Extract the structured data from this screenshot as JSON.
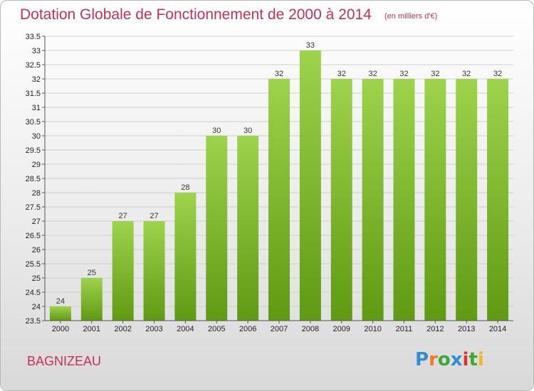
{
  "title": "Dotation Globale de Fonctionnement de 2000 à 2014",
  "unit_note": "(en milliers d'€)",
  "commune": "BAGNIZEAU",
  "logo": {
    "text": "Proxiti",
    "colors": [
      "#2f8fd0",
      "#f07c1e",
      "#3aa935",
      "#2f8fd0",
      "#e8302b",
      "#3aa935",
      "#f2b71c"
    ]
  },
  "colors": {
    "title": "#c4305a",
    "bar_top": "#9ed34c",
    "bar_bottom": "#5f9a12",
    "grid": "#cfcfcf"
  },
  "chart_data": {
    "type": "bar",
    "categories": [
      "2000",
      "2001",
      "2002",
      "2003",
      "2004",
      "2005",
      "2006",
      "2007",
      "2008",
      "2009",
      "2010",
      "2011",
      "2012",
      "2013",
      "2014"
    ],
    "values": [
      24,
      25,
      27,
      27,
      28,
      30,
      30,
      32,
      33,
      32,
      32,
      32,
      32,
      32,
      32
    ],
    "value_labels": [
      "24",
      "25",
      "27",
      "27",
      "28",
      "30",
      "30",
      "32",
      "33",
      "32",
      "32",
      "32",
      "32",
      "32",
      "32"
    ],
    "ylim": [
      23.5,
      33.5
    ],
    "yticks": [
      "23.5",
      "24",
      "24.5",
      "25",
      "25.5",
      "26",
      "26.5",
      "27",
      "27.5",
      "28",
      "28.5",
      "29",
      "29.5",
      "30",
      "30.5",
      "31",
      "31.5",
      "32",
      "32.5",
      "33",
      "33.5"
    ],
    "grid": true,
    "xlabel": "",
    "ylabel": ""
  }
}
